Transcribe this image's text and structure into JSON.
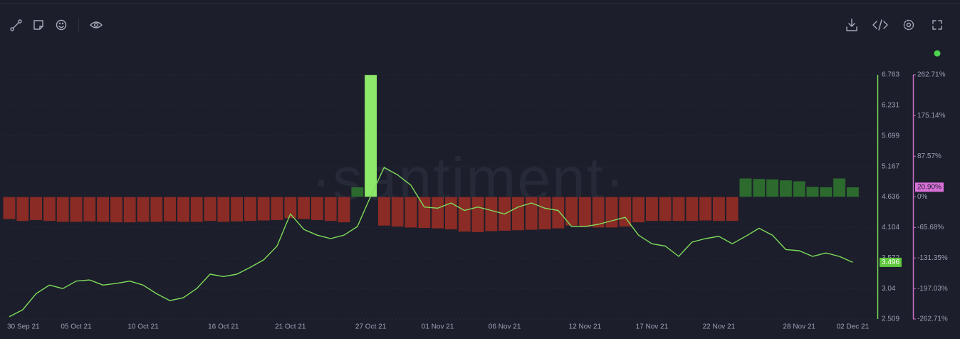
{
  "chart_data": {
    "type": "line",
    "watermark": "·santiment·",
    "x": [
      "30 Sep 21",
      "01 Oct 21",
      "02 Oct 21",
      "03 Oct 21",
      "04 Oct 21",
      "05 Oct 21",
      "06 Oct 21",
      "07 Oct 21",
      "08 Oct 21",
      "09 Oct 21",
      "10 Oct 21",
      "11 Oct 21",
      "12 Oct 21",
      "13 Oct 21",
      "14 Oct 21",
      "15 Oct 21",
      "16 Oct 21",
      "17 Oct 21",
      "18 Oct 21",
      "19 Oct 21",
      "20 Oct 21",
      "21 Oct 21",
      "22 Oct 21",
      "23 Oct 21",
      "24 Oct 21",
      "25 Oct 21",
      "26 Oct 21",
      "27 Oct 21",
      "28 Oct 21",
      "29 Oct 21",
      "30 Oct 21",
      "31 Oct 21",
      "01 Nov 21",
      "02 Nov 21",
      "03 Nov 21",
      "04 Nov 21",
      "05 Nov 21",
      "06 Nov 21",
      "07 Nov 21",
      "08 Nov 21",
      "09 Nov 21",
      "10 Nov 21",
      "11 Nov 21",
      "12 Nov 21",
      "13 Nov 21",
      "14 Nov 21",
      "15 Nov 21",
      "16 Nov 21",
      "17 Nov 21",
      "18 Nov 21",
      "19 Nov 21",
      "20 Nov 21",
      "21 Nov 21",
      "22 Nov 21",
      "23 Nov 21",
      "24 Nov 21",
      "25 Nov 21",
      "26 Nov 21",
      "27 Nov 21",
      "28 Nov 21",
      "29 Nov 21",
      "30 Nov 21",
      "01 Dec 21",
      "02 Dec 21"
    ],
    "xticks": [
      "30 Sep 21",
      "05 Oct 21",
      "10 Oct 21",
      "16 Oct 21",
      "21 Oct 21",
      "27 Oct 21",
      "01 Nov 21",
      "06 Nov 21",
      "12 Nov 21",
      "17 Nov 21",
      "22 Nov 21",
      "28 Nov 21",
      "02 Dec 21"
    ],
    "series": [
      {
        "type": "line",
        "color": "#7fdc5a",
        "values": [
          2.55,
          2.67,
          2.95,
          3.1,
          3.04,
          3.17,
          3.19,
          3.1,
          3.13,
          3.17,
          3.1,
          2.95,
          2.83,
          2.88,
          3.04,
          3.29,
          3.25,
          3.29,
          3.41,
          3.54,
          3.78,
          4.34,
          4.07,
          3.97,
          3.91,
          3.97,
          4.12,
          4.65,
          5.15,
          5.02,
          4.84,
          4.46,
          4.44,
          4.53,
          4.4,
          4.46,
          4.4,
          4.34,
          4.46,
          4.53,
          4.44,
          4.4,
          4.12,
          4.12,
          4.16,
          4.22,
          4.28,
          3.97,
          3.82,
          3.78,
          3.6,
          3.85,
          3.91,
          3.95,
          3.82,
          3.95,
          4.09,
          3.97,
          3.72,
          3.7,
          3.6,
          3.66,
          3.6,
          3.496
        ]
      },
      {
        "type": "bar",
        "axis": "y2",
        "color": "#2c6a2e",
        "negative_color": "#8a2b25",
        "highlight_color": "#8ee86a",
        "last_value_label": "20.90%",
        "label_color": "#d970d9",
        "values": [
          -48,
          -52,
          -50,
          -52,
          -54,
          -54,
          -53,
          -54,
          -55,
          -55,
          -54,
          -54,
          -53,
          -54,
          -54,
          -52,
          -54,
          -53,
          -52,
          -51,
          -50,
          -46,
          -48,
          -50,
          -52,
          -55,
          21,
          262.71,
          -62,
          -64,
          -66,
          -67,
          -68,
          -70,
          -75,
          -76,
          -74,
          -73,
          -72,
          -71,
          -70,
          -68,
          -62,
          -65,
          -66,
          -66,
          -64,
          -55,
          -52,
          -52,
          -52,
          -52,
          -51,
          -52,
          -52,
          40,
          39,
          38,
          36,
          34,
          22,
          21,
          40,
          20.9
        ]
      }
    ],
    "ylim": [
      2.509,
      6.763
    ],
    "yticks": [
      2.509,
      3.04,
      3.572,
      4.104,
      4.636,
      5.167,
      5.699,
      6.231,
      6.763
    ],
    "y2lim": [
      -262.71,
      262.71
    ],
    "y2ticks": [
      {
        "value": -262.71,
        "label": "-262.71%"
      },
      {
        "value": -197.03,
        "label": "-197.03%"
      },
      {
        "value": -131.35,
        "label": "-131.35%"
      },
      {
        "value": -65.68,
        "label": "-65.68%"
      },
      {
        "value": 0,
        "label": "0%"
      },
      {
        "value": 87.57,
        "label": "87.57%"
      },
      {
        "value": 175.14,
        "label": "175.14%"
      },
      {
        "value": 262.71,
        "label": "262.71%"
      }
    ],
    "grid": true
  }
}
